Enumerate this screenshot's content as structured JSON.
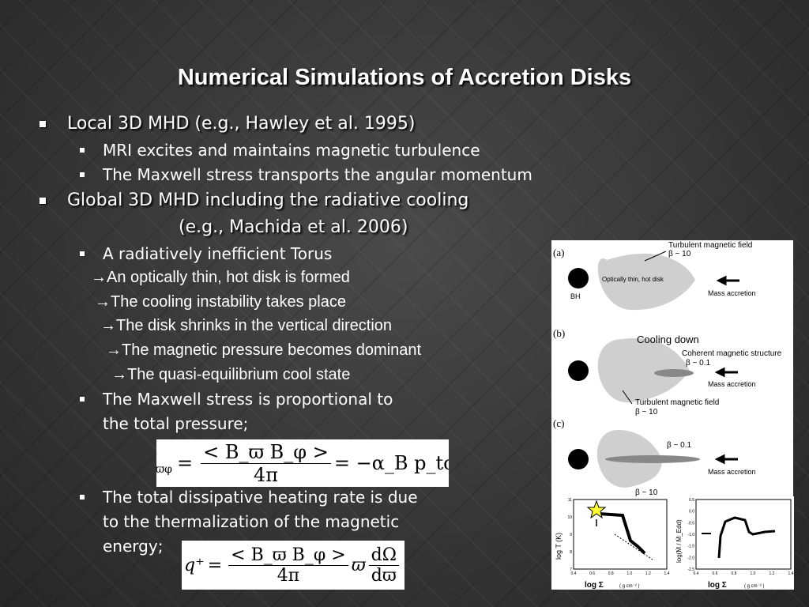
{
  "title": "Numerical Simulations of Accretion Disks",
  "bullets": [
    {
      "text": "Local 3D MHD  (e.g., Hawley et al. 1995)"
    },
    {
      "text": "MRI excites and maintains magnetic turbulence"
    },
    {
      "text": "The Maxwell stress transports the angular momentum"
    },
    {
      "text": "Global 3D MHD including the radiative cooling"
    },
    {
      "text": "(e.g., Machida et al. 2006)"
    },
    {
      "text": "A radiatively inefficient Torus"
    },
    {
      "text": "→An optically thin, hot disk is formed"
    },
    {
      "text": "→The cooling instability takes place"
    },
    {
      "text": "→The disk shrinks in the vertical direction"
    },
    {
      "text": "→The magnetic pressure becomes dominant"
    },
    {
      "text": "→The quasi-equilibrium cool state"
    },
    {
      "text": "The Maxwell stress is proportional to"
    },
    {
      "text": "the total pressure;"
    },
    {
      "text": "The total dissipative heating rate is due"
    },
    {
      "text": "to the thermalization of the magnetic"
    },
    {
      "text": "energy;"
    }
  ],
  "equations": {
    "eq1": {
      "lhs": "T",
      "lhs_sub": "ϖφ",
      "eq": "=",
      "num": "< B_ϖ B_φ >",
      "den": "4π",
      "rhs": "= −α_B p_tot"
    },
    "eq2": {
      "lhs": "q⁺",
      "eq": "=",
      "num": "< B_ϖ B_φ >",
      "den": "4π",
      "mid": "ϖ",
      "num2": "dΩ",
      "den2": "dϖ"
    }
  },
  "figure": {
    "panels": [
      {
        "label": "(a)",
        "texts": [
          "Turbulent magnetic field",
          "β ~ 10",
          "Optically thin, hot disk",
          "BH",
          "Mass accretion"
        ]
      },
      {
        "label": "(b)",
        "texts": [
          "Cooling down",
          "Coherent magnetic structure",
          "β ~ 0.1",
          "Mass accretion",
          "Turbulent magnetic field",
          "β ~ 10"
        ]
      },
      {
        "label": "(c)",
        "texts": [
          "β ~ 0.1",
          "Mass accretion",
          "β ~ 10"
        ]
      }
    ],
    "plot_left": {
      "ylabel": "log T (K)",
      "xlabel": "log Σ",
      "xunit": "( g cm⁻² )",
      "yticks": [
        "11",
        "10",
        "9",
        "8",
        "7"
      ],
      "xticks": [
        "0.4",
        "0.6",
        "0.8",
        "1.0",
        "1.2",
        "1.4"
      ]
    },
    "plot_right": {
      "ylabel": "log(Ṁ / Ṁ_Edd)",
      "xlabel": "log Σ",
      "xunit": "( g cm⁻² )",
      "yticks": [
        "0.5",
        "0.0",
        "-0.5",
        "-1.0",
        "-1.5",
        "-2.0",
        "-2.5"
      ],
      "xticks": [
        "0.4",
        "0.6",
        "0.8",
        "1.0",
        "1.2",
        "1.4"
      ]
    },
    "star_color": "#ffff33"
  }
}
